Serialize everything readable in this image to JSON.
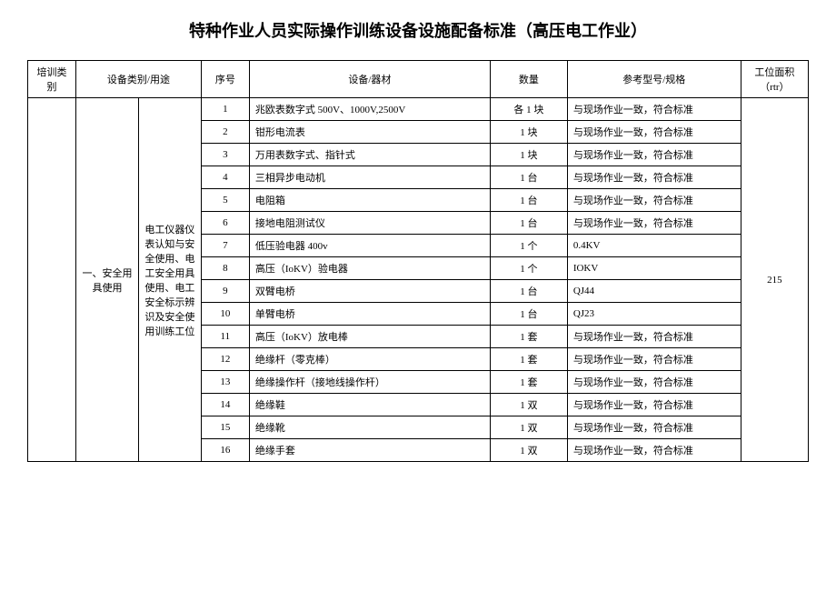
{
  "title": "特种作业人员实际操作训练设备设施配备标准（高压电工作业）",
  "headers": {
    "category": "培训类别",
    "equipType": "设备类别/用途",
    "seq": "序号",
    "equipment": "设备/器材",
    "quantity": "数量",
    "spec": "参考型号/规格",
    "area": "工位面积（rtr）"
  },
  "category": "",
  "subcategory": "一、安全用具使用",
  "useDesc": "电工仪器仪表认知与安全使用、电工安全用具使用、电工安全标示辨识及安全使用训练工位",
  "area": "215",
  "rows": [
    {
      "seq": "1",
      "equip": "兆欧表数字式 500V、1000V,2500V",
      "qty": "各 1 块",
      "spec": "与现场作业一致，符合标准"
    },
    {
      "seq": "2",
      "equip": "钳形电流表",
      "qty": "1 块",
      "spec": "与现场作业一致，符合标准"
    },
    {
      "seq": "3",
      "equip": "万用表数字式、指针式",
      "qty": "1 块",
      "spec": "与现场作业一致，符合标准"
    },
    {
      "seq": "4",
      "equip": "三相异步电动机",
      "qty": "1 台",
      "spec": "与现场作业一致，符合标准"
    },
    {
      "seq": "5",
      "equip": "电阻箱",
      "qty": "1 台",
      "spec": "与现场作业一致，符合标准"
    },
    {
      "seq": "6",
      "equip": "接地电阻测试仪",
      "qty": "1 台",
      "spec": "与现场作业一致，符合标准"
    },
    {
      "seq": "7",
      "equip": "低压验电器 400v",
      "qty": "1 个",
      "spec": "0.4KV"
    },
    {
      "seq": "8",
      "equip": "高压（IoKV）验电器",
      "qty": "1 个",
      "spec": "IOKV"
    },
    {
      "seq": "9",
      "equip": "双臂电桥",
      "qty": "1 台",
      "spec": "QJ44"
    },
    {
      "seq": "10",
      "equip": "单臂电桥",
      "qty": "1 台",
      "spec": "QJ23"
    },
    {
      "seq": "11",
      "equip": "高压（IoKV）放电棒",
      "qty": "1 套",
      "spec": "与现场作业一致，符合标准"
    },
    {
      "seq": "12",
      "equip": "绝缘杆（零克棒）",
      "qty": "1 套",
      "spec": "与现场作业一致，符合标准"
    },
    {
      "seq": "13",
      "equip": "绝缘操作杆（接地线操作杆）",
      "qty": "1 套",
      "spec": "与现场作业一致，符合标准"
    },
    {
      "seq": "14",
      "equip": "绝缘鞋",
      "qty": "1 双",
      "spec": "与现场作业一致，符合标准"
    },
    {
      "seq": "15",
      "equip": "绝缘靴",
      "qty": "1 双",
      "spec": "与现场作业一致，符合标准"
    },
    {
      "seq": "16",
      "equip": "绝缘手套",
      "qty": "1 双",
      "spec": "与现场作业一致，符合标准"
    }
  ]
}
